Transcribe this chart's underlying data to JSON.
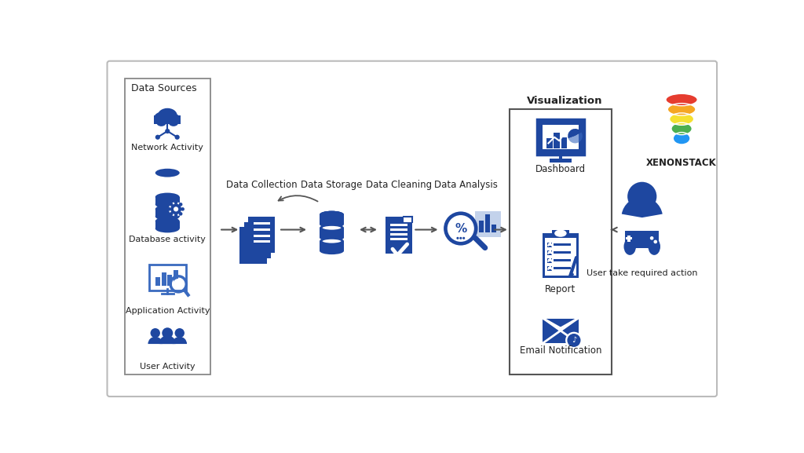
{
  "bg_color": "#ffffff",
  "blue": "#1a3a8c",
  "blue_fill": "#1e47a0",
  "blue_light": "#3a6abf",
  "text_color": "#222222",
  "data_sources_label": "Data Sources",
  "visualization_label": "Visualization",
  "xenonstack_label": "XENONSTACK",
  "process_labels": [
    "Data Collection",
    "Data Storage",
    "Data Cleaning",
    "Data Analysis"
  ],
  "source_labels": [
    "Network Activity",
    "Database activity",
    "Application Activity",
    "User Activity"
  ],
  "viz_items": [
    "Dashboard",
    "Report",
    "Email Notification"
  ],
  "user_action_label": "User take required action",
  "logo_colors": [
    "#e63c2f",
    "#f5a623",
    "#f5e030",
    "#4caf50",
    "#2196f3"
  ]
}
